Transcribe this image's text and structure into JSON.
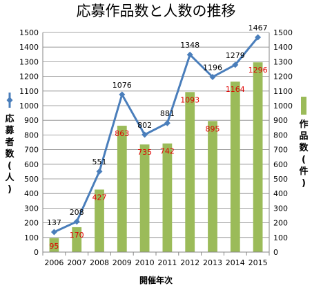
{
  "chart_data": {
    "type": "bar+line",
    "title": "応募作品数と人数の推移",
    "xlabel": "開催年次",
    "categories": [
      "2006",
      "2007",
      "2008",
      "2009",
      "2010",
      "2011",
      "2012",
      "2013",
      "2014",
      "2015"
    ],
    "series": [
      {
        "name": "応募者数(人)",
        "kind": "line",
        "axis": "left",
        "color": "#4a7ebb",
        "values": [
          137,
          208,
          551,
          1076,
          802,
          881,
          1348,
          1196,
          1279,
          1467
        ],
        "labels": [
          "137",
          "208",
          "551",
          "1076",
          "802",
          "881",
          "1348",
          "1196",
          "1279",
          "1467"
        ]
      },
      {
        "name": "作品数(件)",
        "kind": "bar",
        "axis": "right",
        "color": "#9bbb59",
        "values": [
          95,
          170,
          427,
          863,
          735,
          742,
          1093,
          895,
          1164,
          1296
        ],
        "labels": [
          "95",
          "170",
          "427",
          "863",
          "735",
          "742",
          "1093",
          "895",
          "1164",
          "1296"
        ]
      }
    ],
    "ylim": [
      0,
      1500
    ],
    "y_ticks": [
      "0",
      "100",
      "200",
      "300",
      "400",
      "500",
      "600",
      "700",
      "800",
      "900",
      "1000",
      "1100",
      "1200",
      "1300",
      "1400",
      "1500"
    ],
    "grid": true,
    "legend": "sides",
    "label_colors": {
      "line": "#000000",
      "bar": "#e00000"
    }
  }
}
